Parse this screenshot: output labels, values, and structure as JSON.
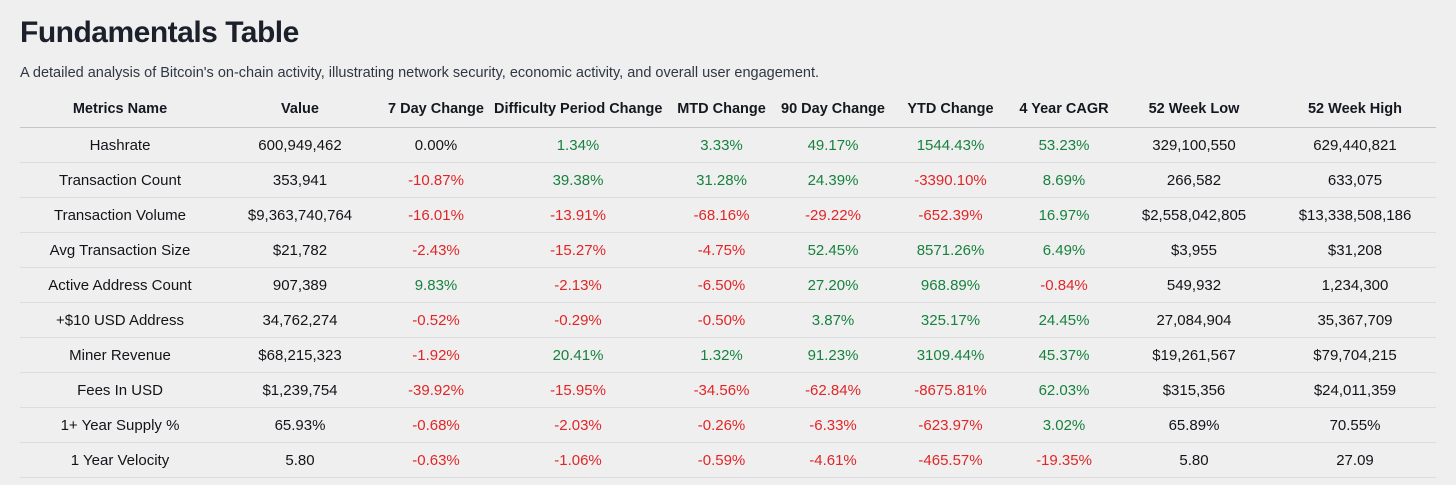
{
  "page": {
    "title": "Fundamentals Table",
    "subtitle": "A detailed analysis of Bitcoin's on-chain activity, illustrating network security, economic activity, and overall user engagement."
  },
  "colors": {
    "positive": "#17823d",
    "negative": "#e02626",
    "neutral": "#121418"
  },
  "chart_data": {
    "type": "table",
    "title": "Fundamentals Table",
    "columns": [
      "Metrics Name",
      "Value",
      "7 Day Change",
      "Difficulty Period Change",
      "MTD Change",
      "90 Day Change",
      "YTD Change",
      "4 Year CAGR",
      "52 Week Low",
      "52 Week High"
    ],
    "change_column_indices": [
      2,
      3,
      4,
      5,
      6,
      7
    ],
    "rows": [
      [
        "Hashrate",
        "600,949,462",
        "0.00%",
        "1.34%",
        "3.33%",
        "49.17%",
        "1544.43%",
        "53.23%",
        "329,100,550",
        "629,440,821"
      ],
      [
        "Transaction Count",
        "353,941",
        "-10.87%",
        "39.38%",
        "31.28%",
        "24.39%",
        "-3390.10%",
        "8.69%",
        "266,582",
        "633,075"
      ],
      [
        "Transaction Volume",
        "$9,363,740,764",
        "-16.01%",
        "-13.91%",
        "-68.16%",
        "-29.22%",
        "-652.39%",
        "16.97%",
        "$2,558,042,805",
        "$13,338,508,186"
      ],
      [
        "Avg Transaction Size",
        "$21,782",
        "-2.43%",
        "-15.27%",
        "-4.75%",
        "52.45%",
        "8571.26%",
        "6.49%",
        "$3,955",
        "$31,208"
      ],
      [
        "Active Address Count",
        "907,389",
        "9.83%",
        "-2.13%",
        "-6.50%",
        "27.20%",
        "968.89%",
        "-0.84%",
        "549,932",
        "1,234,300"
      ],
      [
        "+$10 USD Address",
        "34,762,274",
        "-0.52%",
        "-0.29%",
        "-0.50%",
        "3.87%",
        "325.17%",
        "24.45%",
        "27,084,904",
        "35,367,709"
      ],
      [
        "Miner Revenue",
        "$68,215,323",
        "-1.92%",
        "20.41%",
        "1.32%",
        "91.23%",
        "3109.44%",
        "45.37%",
        "$19,261,567",
        "$79,704,215"
      ],
      [
        "Fees In USD",
        "$1,239,754",
        "-39.92%",
        "-15.95%",
        "-34.56%",
        "-62.84%",
        "-8675.81%",
        "62.03%",
        "$315,356",
        "$24,011,359"
      ],
      [
        "1+ Year Supply %",
        "65.93%",
        "-0.68%",
        "-2.03%",
        "-0.26%",
        "-6.33%",
        "-623.97%",
        "3.02%",
        "65.89%",
        "70.55%"
      ],
      [
        "1 Year Velocity",
        "5.80",
        "-0.63%",
        "-1.06%",
        "-0.59%",
        "-4.61%",
        "-465.57%",
        "-19.35%",
        "5.80",
        "27.09"
      ]
    ]
  }
}
